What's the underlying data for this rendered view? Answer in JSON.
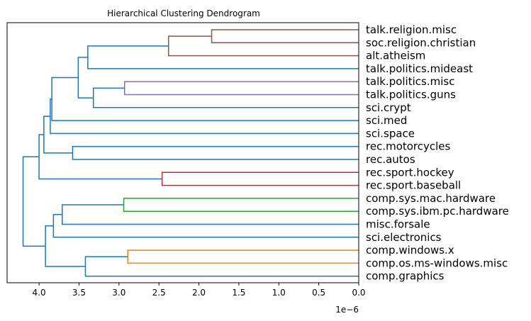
{
  "chart_data": {
    "type": "dendrogram",
    "title": "Hierarchical Clustering Dendrogram",
    "orientation": "left",
    "x_axis": {
      "ticks": [
        4.0,
        3.5,
        3.0,
        2.5,
        2.0,
        1.5,
        1.0,
        0.5,
        0.0
      ],
      "tick_labels": [
        "4.0",
        "3.5",
        "3.0",
        "2.5",
        "2.0",
        "1.5",
        "1.0",
        "0.5",
        "0.0"
      ],
      "range": [
        4.4,
        0.0
      ],
      "offset_label": "1e−6",
      "scale": 1e-06
    },
    "leaves": [
      "talk.religion.misc",
      "soc.religion.christian",
      "alt.atheism",
      "talk.politics.mideast",
      "talk.politics.misc",
      "talk.politics.guns",
      "sci.crypt",
      "sci.med",
      "sci.space",
      "rec.motorcycles",
      "rec.autos",
      "rec.sport.hockey",
      "rec.sport.baseball",
      "comp.sys.mac.hardware",
      "comp.sys.ibm.pc.hardware",
      "misc.forsale",
      "sci.electronics",
      "comp.windows.x",
      "comp.os.ms-windows.misc",
      "comp.graphics"
    ],
    "colors": {
      "brown": "#8c564b",
      "purple": "#9467bd",
      "red": "#d62728",
      "green": "#2ca02c",
      "orange": "#ff7f0e",
      "blue": "#1f77b4"
    },
    "merges": [
      {
        "a": [
          0
        ],
        "b": [
          1
        ],
        "height": 1.84,
        "color": "brown"
      },
      {
        "a": [
          0,
          1
        ],
        "b": [
          2
        ],
        "height": 2.38,
        "color": "brown"
      },
      {
        "a": [
          0,
          1,
          2
        ],
        "b": [
          3
        ],
        "height": 3.39,
        "color": "blue"
      },
      {
        "a": [
          4
        ],
        "b": [
          5
        ],
        "height": 2.93,
        "color": "purple"
      },
      {
        "a": [
          4,
          5
        ],
        "b": [
          6
        ],
        "height": 3.32,
        "color": "blue"
      },
      {
        "a": [
          0,
          1,
          2,
          3
        ],
        "b": [
          4,
          5,
          6
        ],
        "height": 3.51,
        "color": "blue"
      },
      {
        "a": [
          0,
          1,
          2,
          3,
          4,
          5,
          6
        ],
        "b": [
          7
        ],
        "height": 3.84,
        "color": "blue"
      },
      {
        "a": [
          0,
          1,
          2,
          3,
          4,
          5,
          6,
          7
        ],
        "b": [
          8
        ],
        "height": 3.86,
        "color": "blue"
      },
      {
        "a": [
          9
        ],
        "b": [
          10
        ],
        "height": 3.58,
        "color": "blue"
      },
      {
        "a": [
          0,
          1,
          2,
          3,
          4,
          5,
          6,
          7,
          8
        ],
        "b": [
          9,
          10
        ],
        "height": 3.94,
        "color": "blue"
      },
      {
        "a": [
          11
        ],
        "b": [
          12
        ],
        "height": 2.46,
        "color": "red"
      },
      {
        "a": [
          0,
          1,
          2,
          3,
          4,
          5,
          6,
          7,
          8,
          9,
          10
        ],
        "b": [
          11,
          12
        ],
        "height": 4.0,
        "color": "blue"
      },
      {
        "a": [
          13
        ],
        "b": [
          14
        ],
        "height": 2.94,
        "color": "green"
      },
      {
        "a": [
          13,
          14
        ],
        "b": [
          15
        ],
        "height": 3.71,
        "color": "blue"
      },
      {
        "a": [
          13,
          14,
          15
        ],
        "b": [
          16
        ],
        "height": 3.82,
        "color": "blue"
      },
      {
        "a": [
          17
        ],
        "b": [
          18
        ],
        "height": 2.89,
        "color": "orange"
      },
      {
        "a": [
          17,
          18
        ],
        "b": [
          19
        ],
        "height": 3.42,
        "color": "blue"
      },
      {
        "a": [
          13,
          14,
          15,
          16
        ],
        "b": [
          17,
          18,
          19
        ],
        "height": 3.92,
        "color": "blue"
      },
      {
        "a": [
          0,
          1,
          2,
          3,
          4,
          5,
          6,
          7,
          8,
          9,
          10,
          11,
          12
        ],
        "b": [
          13,
          14,
          15,
          16,
          17,
          18,
          19
        ],
        "height": 4.2,
        "color": "blue"
      }
    ],
    "grid": false,
    "legend": "none"
  }
}
